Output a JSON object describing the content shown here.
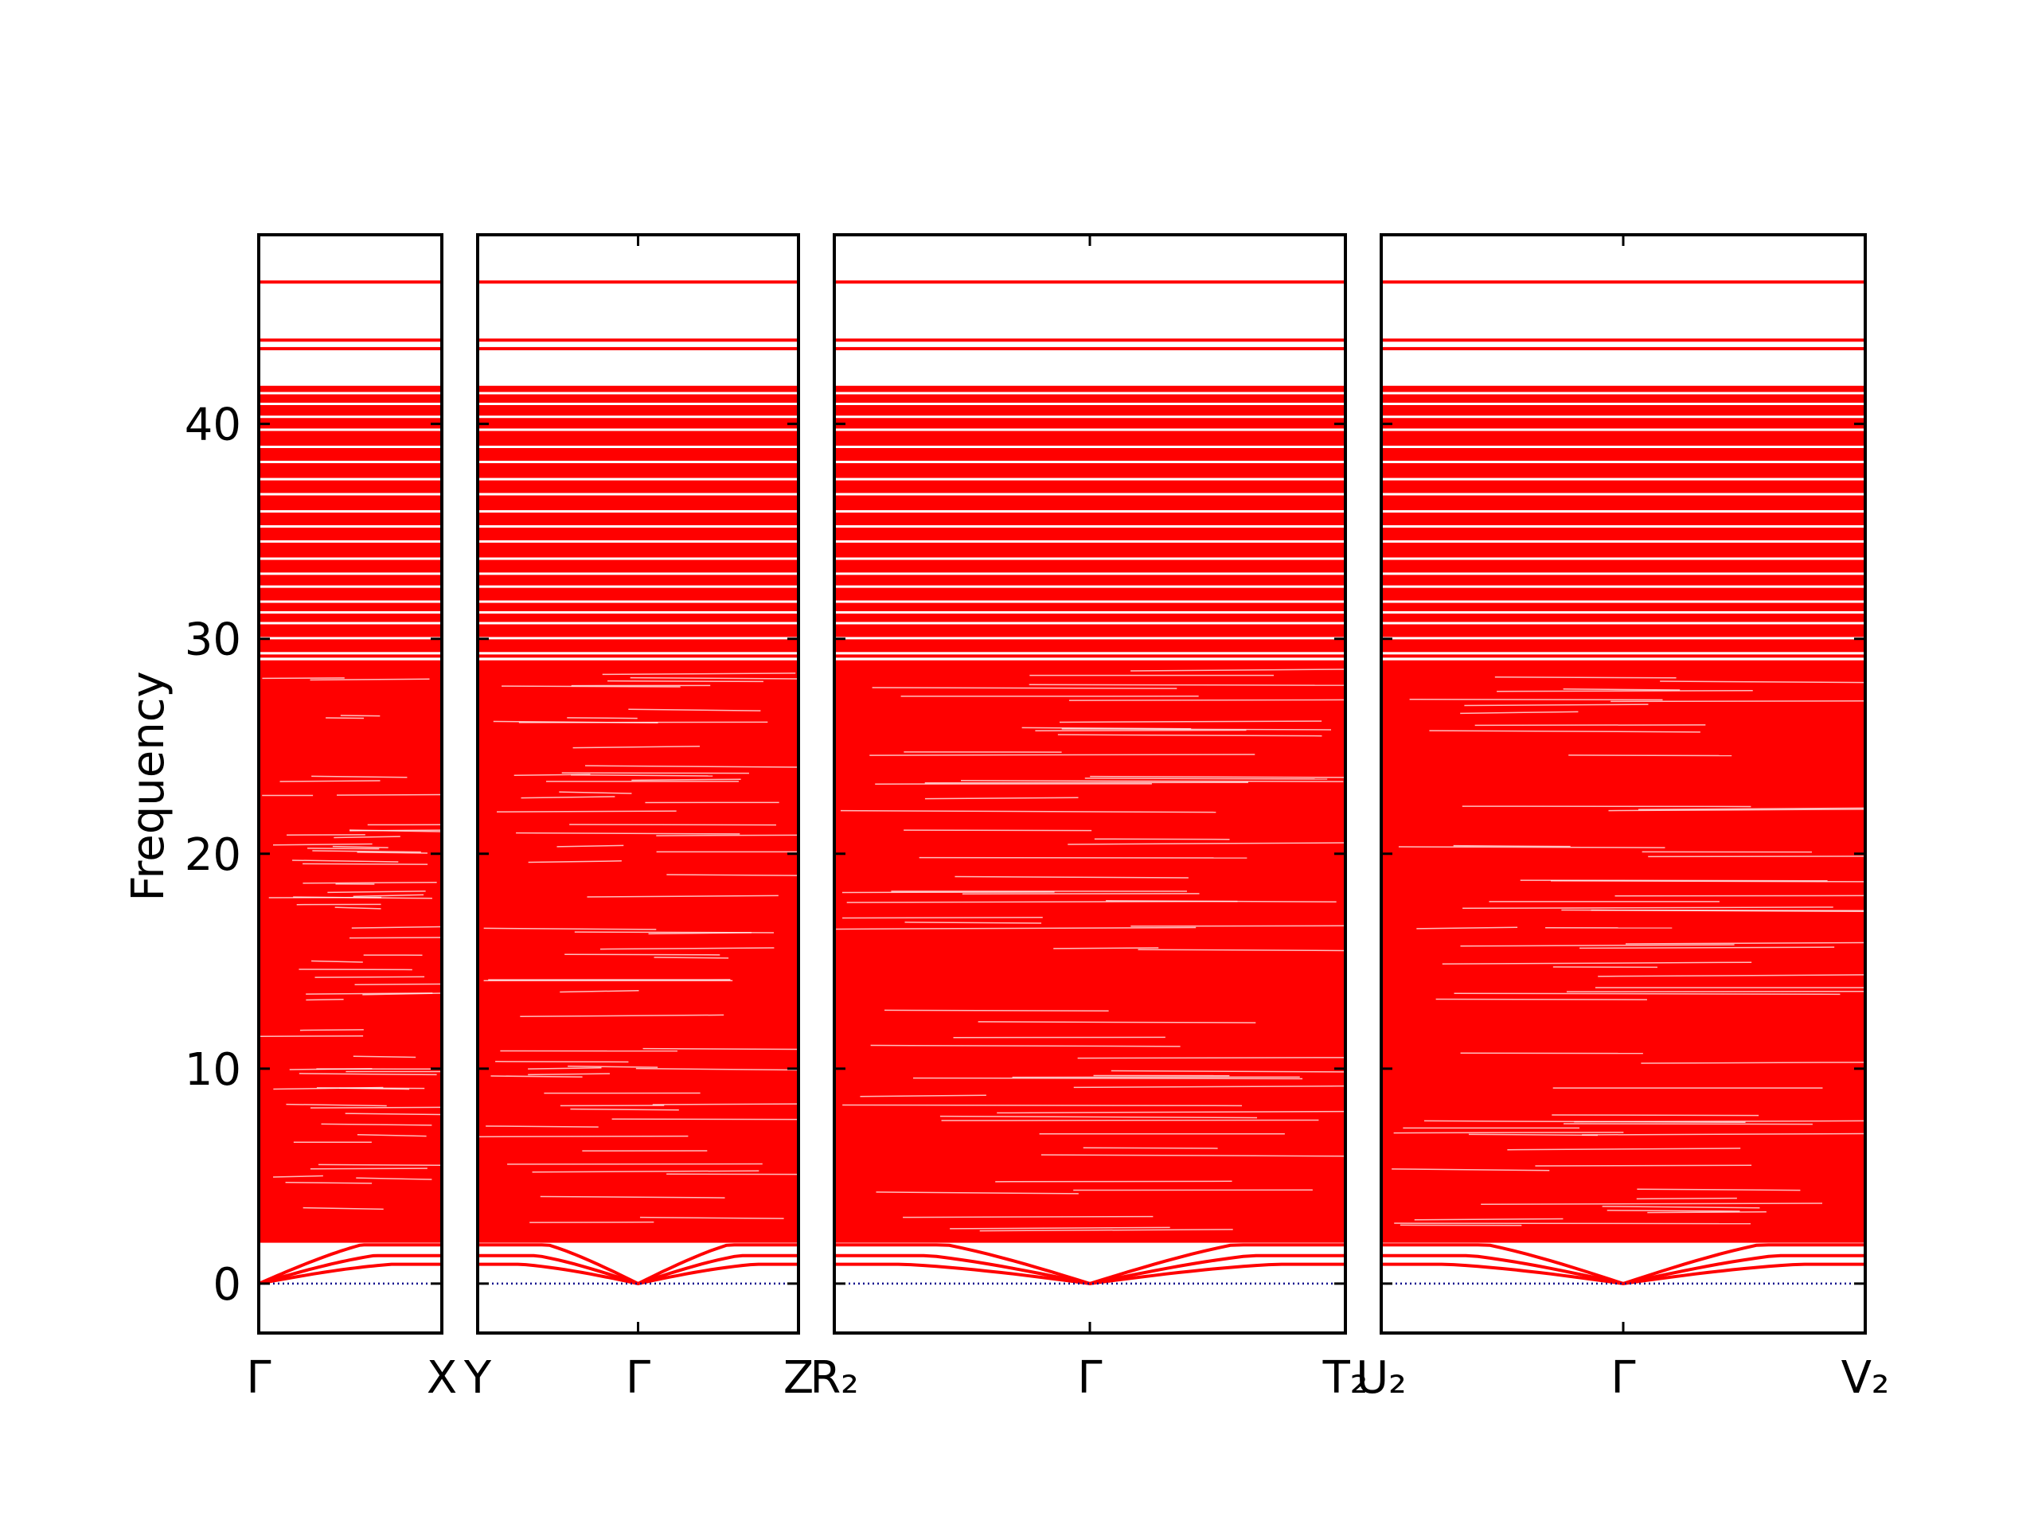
{
  "chart_data": {
    "type": "line",
    "title": "",
    "xlabel": "",
    "ylabel": "Frequency",
    "ylim": [
      -2.3,
      48.8
    ],
    "yticks": [
      0,
      10,
      20,
      30,
      40
    ],
    "grid": false,
    "line_color": "#ff0000",
    "zero_line_color": "#00008b",
    "panels": [
      {
        "kpoints": [
          "Γ",
          "X"
        ]
      },
      {
        "kpoints": [
          "Y",
          "Γ",
          "Z"
        ]
      },
      {
        "kpoints": [
          "R₂",
          "Γ",
          "T₂"
        ]
      },
      {
        "kpoints": [
          "U₂",
          "Γ",
          "V₂"
        ]
      }
    ],
    "flat_bands": [
      46.6,
      43.9,
      43.5,
      41.7,
      41.3,
      40.8,
      40.2,
      39.6,
      38.8,
      38.1,
      37.3,
      36.6,
      35.8,
      35.1,
      34.4,
      33.6,
      32.9,
      32.3,
      31.6,
      31.1,
      30.6,
      29.9,
      29.2
    ],
    "dense_band_range": [
      0,
      29.0
    ],
    "acoustic_band_tops": [
      0.9,
      1.3,
      1.8
    ]
  }
}
